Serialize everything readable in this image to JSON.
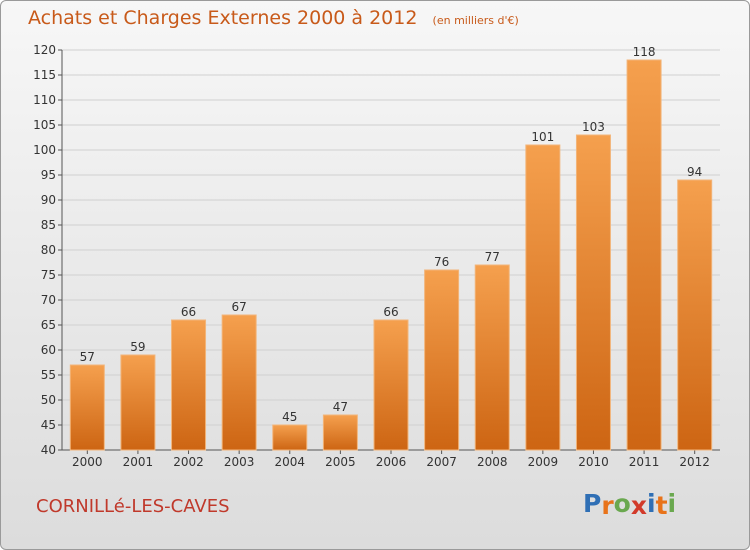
{
  "title": "Achats et Charges Externes 2000 à 2012",
  "subtitle": "(en milliers d'€)",
  "footer": {
    "city": "CORNILLé-LES-CAVES",
    "logo_text": "Proxiti",
    "logo_letters": [
      {
        "ch": "P",
        "color": "#2f6fb5"
      },
      {
        "ch": "r",
        "color": "#e8731a"
      },
      {
        "ch": "o",
        "color": "#6aa84f"
      },
      {
        "ch": "x",
        "color": "#d23a2a"
      },
      {
        "ch": "i",
        "color": "#2f6fb5"
      },
      {
        "ch": "t",
        "color": "#e8731a"
      },
      {
        "ch": "i",
        "color": "#6aa84f"
      }
    ]
  },
  "colors": {
    "title": "#c85a1a",
    "bar_top": "#f5a04e",
    "bar_bottom": "#cd6513",
    "city": "#c0392b"
  },
  "chart_data": {
    "type": "bar",
    "categories": [
      "2000",
      "2001",
      "2002",
      "2003",
      "2004",
      "2005",
      "2006",
      "2007",
      "2008",
      "2009",
      "2010",
      "2011",
      "2012"
    ],
    "values": [
      57,
      59,
      66,
      67,
      45,
      47,
      66,
      76,
      77,
      101,
      103,
      118,
      94
    ],
    "ylim": [
      40,
      120
    ],
    "yticks": [
      40,
      45,
      50,
      55,
      60,
      65,
      70,
      75,
      80,
      85,
      90,
      95,
      100,
      105,
      110,
      115,
      120
    ],
    "grid": true
  }
}
